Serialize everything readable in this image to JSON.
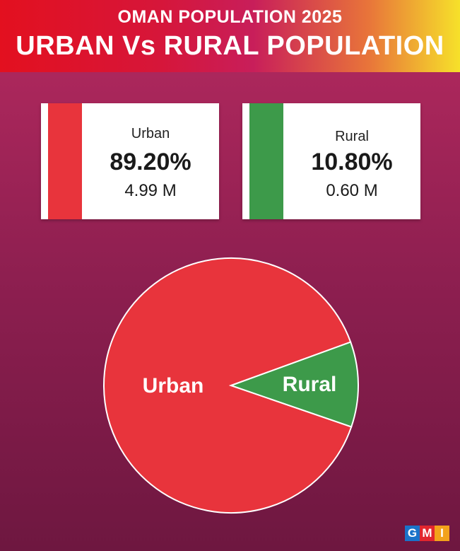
{
  "header": {
    "title_line1": "OMAN POPULATION 2025",
    "title_line2": "URBAN Vs RURAL POPULATION"
  },
  "cards": {
    "urban": {
      "label": "Urban",
      "percent": "89.20%",
      "value": "4.99 M",
      "color": "#e8343c"
    },
    "rural": {
      "label": "Rural",
      "percent": "10.80%",
      "value": "0.60 M",
      "color": "#3d9a4a"
    }
  },
  "chart_data": {
    "type": "pie",
    "title": "URBAN Vs RURAL POPULATION",
    "categories": [
      "Urban",
      "Rural"
    ],
    "values": [
      89.2,
      10.8
    ],
    "colors": [
      "#e8343c",
      "#3d9a4a"
    ],
    "slice_labels": [
      "Urban",
      "Rural"
    ]
  },
  "logo": {
    "letters": [
      "G",
      "M",
      "I"
    ],
    "colors": [
      "#1a73c9",
      "#e2262e",
      "#f2a21b"
    ]
  }
}
